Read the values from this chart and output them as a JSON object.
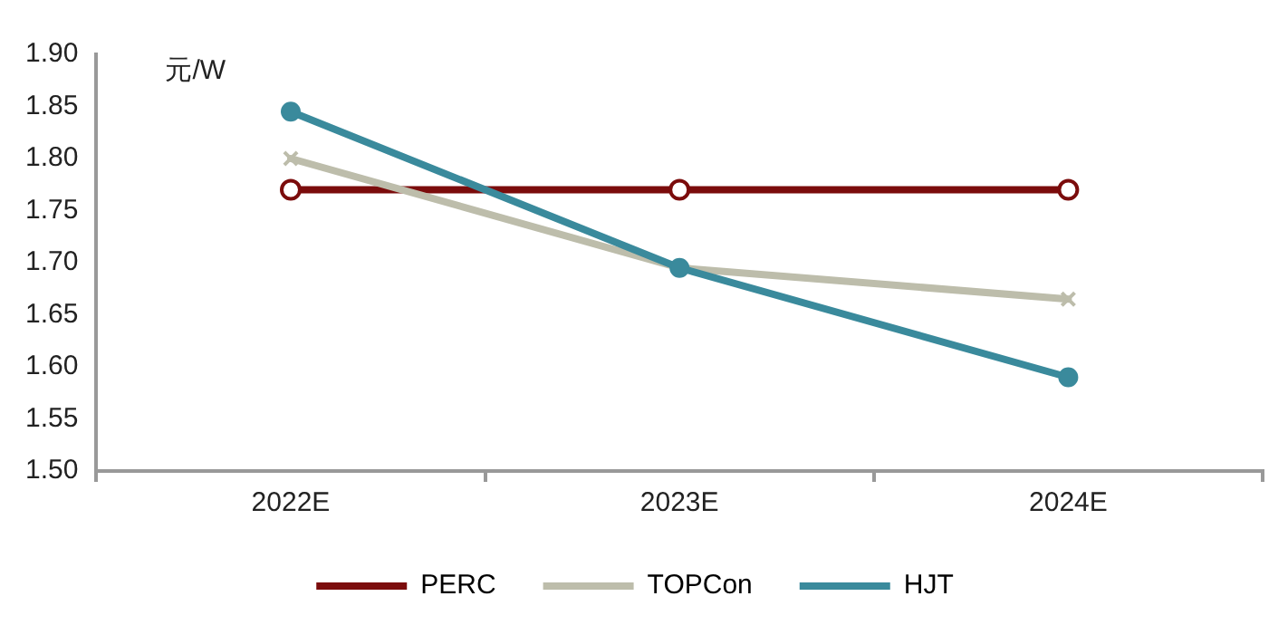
{
  "chart_data": {
    "type": "line",
    "ylabel": "元/W",
    "categories": [
      "2022E",
      "2023E",
      "2024E"
    ],
    "series": [
      {
        "name": "PERC",
        "color": "#7b0c0c",
        "marker": "circle",
        "values": [
          1.77,
          1.77,
          1.77
        ]
      },
      {
        "name": "TOPCon",
        "color": "#bdbdab",
        "marker": "cross",
        "values": [
          1.8,
          1.695,
          1.665
        ]
      },
      {
        "name": "HJT",
        "color": "#3a8a9c",
        "marker": "circle",
        "values": [
          1.845,
          1.695,
          1.59
        ]
      }
    ],
    "ylim": [
      1.5,
      1.9
    ],
    "yticks": [
      {
        "value": 1.5,
        "label": "1.50"
      },
      {
        "value": 1.55,
        "label": "1.55"
      },
      {
        "value": 1.6,
        "label": "1.60"
      },
      {
        "value": 1.65,
        "label": "1.65"
      },
      {
        "value": 1.7,
        "label": "1.70"
      },
      {
        "value": 1.75,
        "label": "1.75"
      },
      {
        "value": 1.8,
        "label": "1.80"
      },
      {
        "value": 1.85,
        "label": "1.85"
      },
      {
        "value": 1.9,
        "label": "1.90"
      }
    ],
    "grid": false,
    "legend": "bottom"
  }
}
